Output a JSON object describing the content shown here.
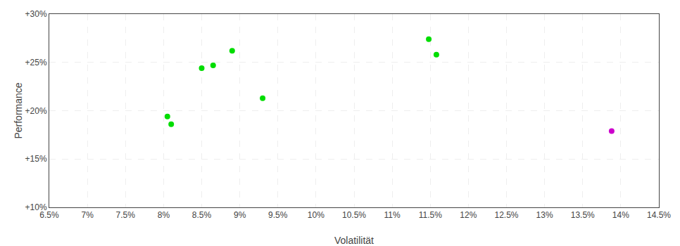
{
  "chart_data": {
    "type": "scatter",
    "xlabel": "Volatilität",
    "ylabel": "Performance",
    "xlim": [
      0.065,
      0.145
    ],
    "ylim": [
      0.1,
      0.3
    ],
    "xticks": [
      {
        "value": 0.065,
        "label": "6.5%"
      },
      {
        "value": 0.07,
        "label": "7%"
      },
      {
        "value": 0.075,
        "label": "7.5%"
      },
      {
        "value": 0.08,
        "label": "8%"
      },
      {
        "value": 0.085,
        "label": "8.5%"
      },
      {
        "value": 0.09,
        "label": "9%"
      },
      {
        "value": 0.095,
        "label": "9.5%"
      },
      {
        "value": 0.1,
        "label": "10%"
      },
      {
        "value": 0.105,
        "label": "10.5%"
      },
      {
        "value": 0.11,
        "label": "11%"
      },
      {
        "value": 0.115,
        "label": "11.5%"
      },
      {
        "value": 0.12,
        "label": "12%"
      },
      {
        "value": 0.125,
        "label": "12.5%"
      },
      {
        "value": 0.13,
        "label": "13%"
      },
      {
        "value": 0.135,
        "label": "13.5%"
      },
      {
        "value": 0.14,
        "label": "14%"
      },
      {
        "value": 0.145,
        "label": "14.5%"
      }
    ],
    "yticks": [
      {
        "value": 0.1,
        "label": "+10%"
      },
      {
        "value": 0.15,
        "label": "+15%"
      },
      {
        "value": 0.2,
        "label": "+20%"
      },
      {
        "value": 0.25,
        "label": "+25%"
      },
      {
        "value": 0.3,
        "label": "+30%"
      }
    ],
    "grid": true,
    "series": [
      {
        "color": "#00dd00",
        "x": [
          0.0805,
          0.081,
          0.085,
          0.0865,
          0.089,
          0.093,
          0.1148,
          0.1158
        ],
        "values": [
          0.194,
          0.186,
          0.244,
          0.247,
          0.262,
          0.213,
          0.274,
          0.258
        ]
      },
      {
        "color": "#cc00cc",
        "x": [
          0.1388
        ],
        "values": [
          0.179
        ]
      }
    ]
  }
}
